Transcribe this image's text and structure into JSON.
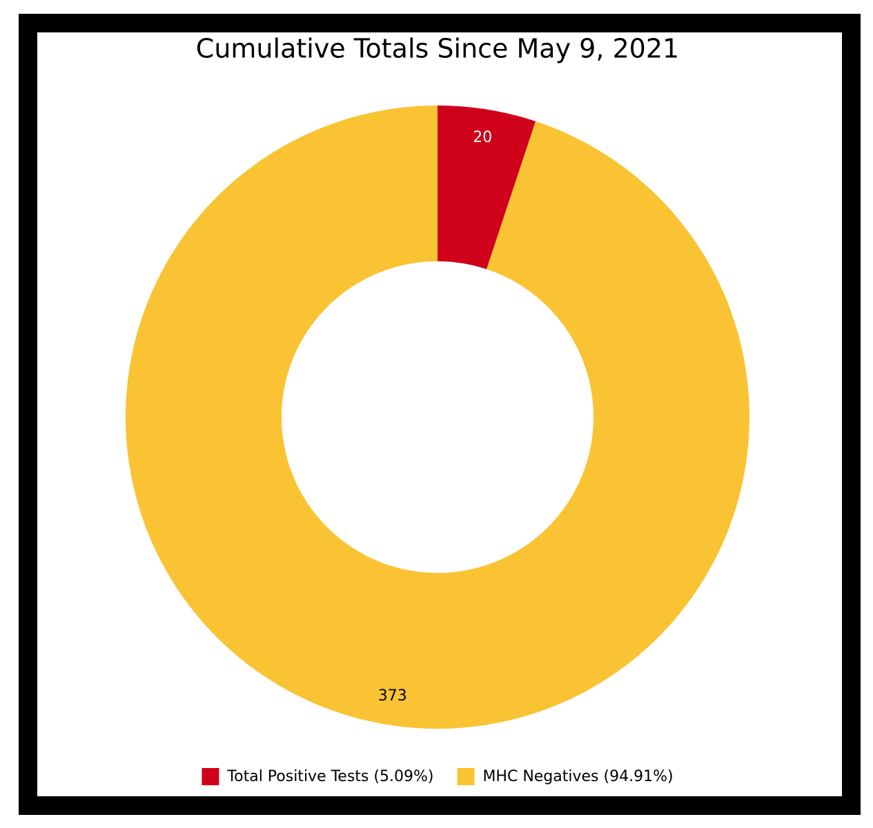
{
  "chart_data": {
    "type": "donut",
    "title": "Cumulative Totals Since May 9, 2021",
    "categories": [
      "Total Positive Tests (5.09%)",
      "MHC Negatives (94.91%)"
    ],
    "values": [
      20,
      373
    ],
    "colors": [
      "#d0021b",
      "#f9c333"
    ]
  }
}
